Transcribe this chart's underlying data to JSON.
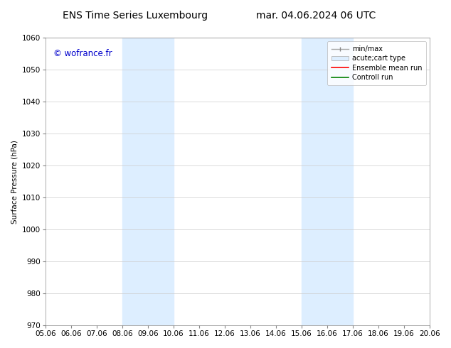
{
  "title_left": "ENS Time Series Luxembourg",
  "title_right": "mar. 04.06.2024 06 UTC",
  "ylabel": "Surface Pressure (hPa)",
  "ylim": [
    970,
    1060
  ],
  "yticks": [
    970,
    980,
    990,
    1000,
    1010,
    1020,
    1030,
    1040,
    1050,
    1060
  ],
  "xtick_labels": [
    "05.06",
    "06.06",
    "07.06",
    "08.06",
    "09.06",
    "10.06",
    "11.06",
    "12.06",
    "13.06",
    "14.06",
    "15.06",
    "16.06",
    "17.06",
    "18.06",
    "19.06",
    "20.06"
  ],
  "xlim": [
    0,
    15
  ],
  "shaded_regions": [
    {
      "xmin": 3,
      "xmax": 5,
      "color": "#ddeeff"
    },
    {
      "xmin": 10,
      "xmax": 12,
      "color": "#ddeeff"
    }
  ],
  "watermark": "© wofrance.fr",
  "watermark_color": "#0000cc",
  "bg_color": "#ffffff",
  "grid_color": "#cccccc",
  "font_size": 7.5,
  "title_font_size": 10,
  "legend_font_size": 7,
  "spine_color": "#888888"
}
